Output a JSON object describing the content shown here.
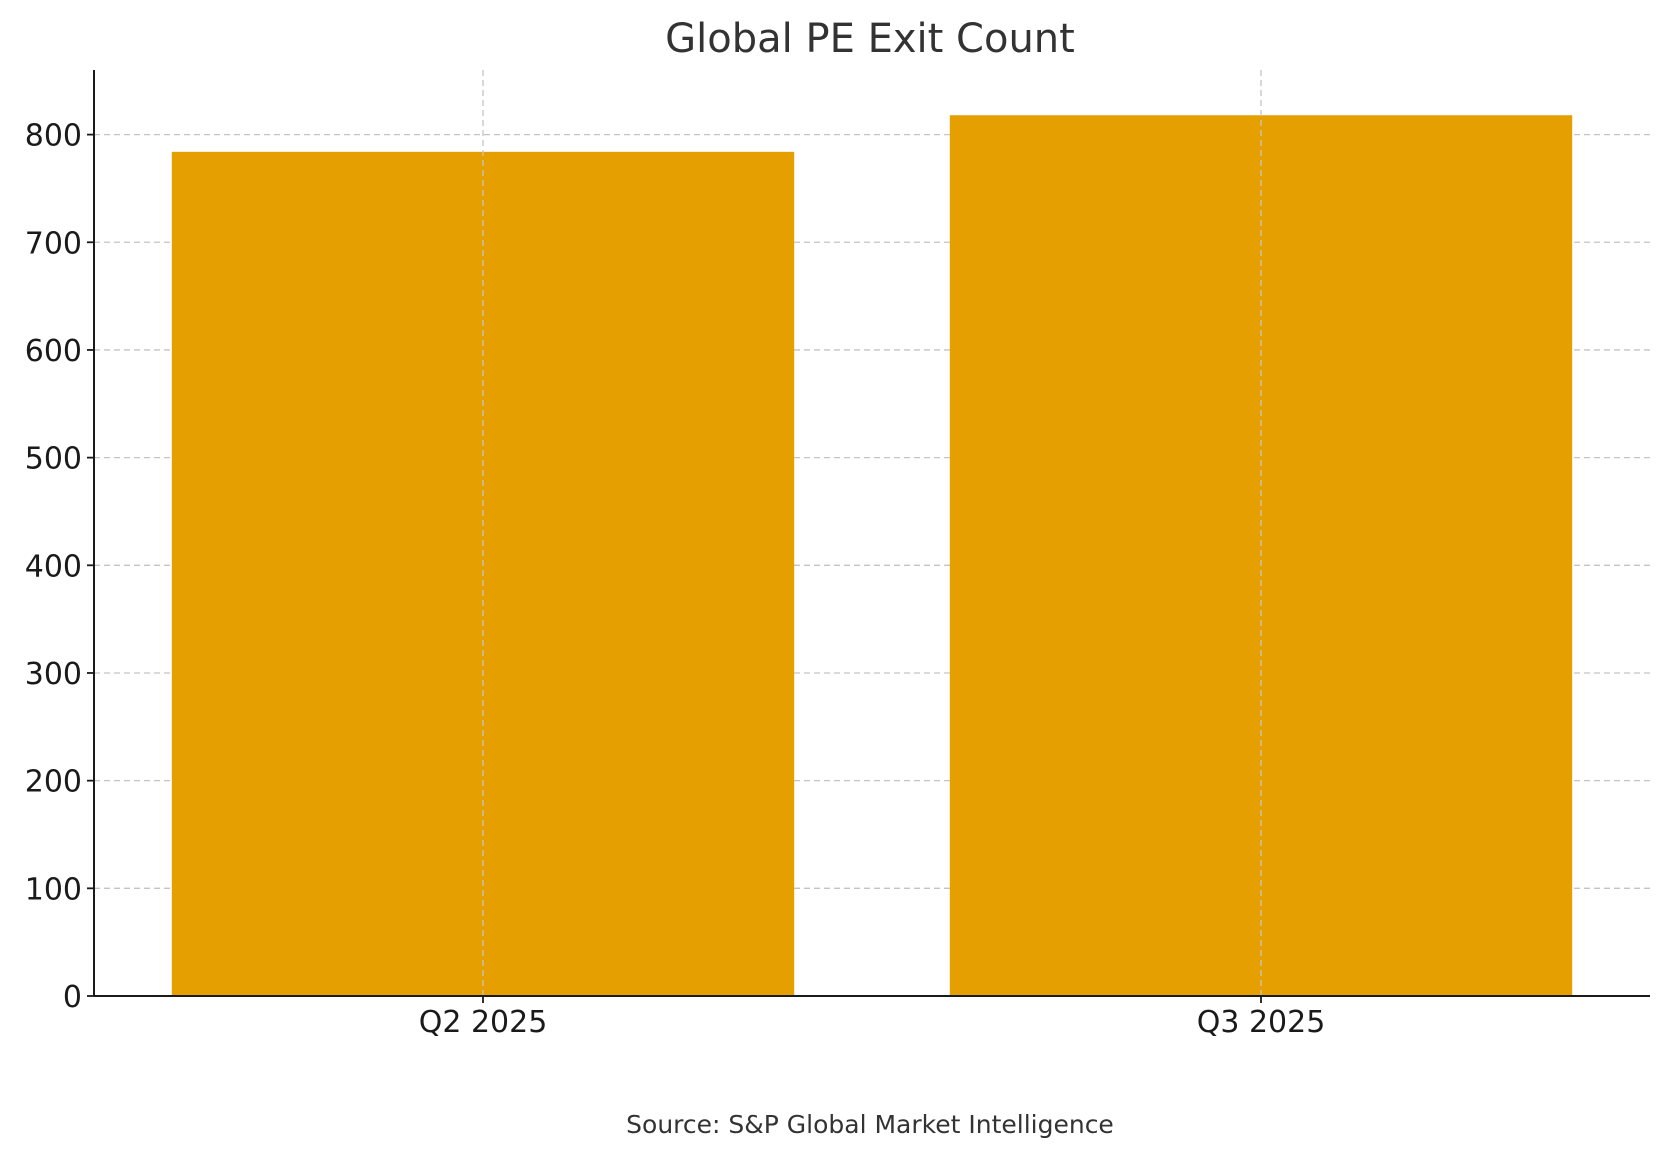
{
  "chart_data": {
    "type": "bar",
    "title": "Global PE Exit Count",
    "categories": [
      "Q2 2025",
      "Q3 2025"
    ],
    "values": [
      784,
      818
    ],
    "xlabel": "",
    "ylabel": "",
    "ylim": [
      0,
      860
    ],
    "yticks": [
      0,
      100,
      200,
      300,
      400,
      500,
      600,
      700,
      800
    ],
    "grid": true,
    "legend": "none",
    "bar_color": "#E5A000",
    "source": "Source: S&P Global Market Intelligence"
  }
}
